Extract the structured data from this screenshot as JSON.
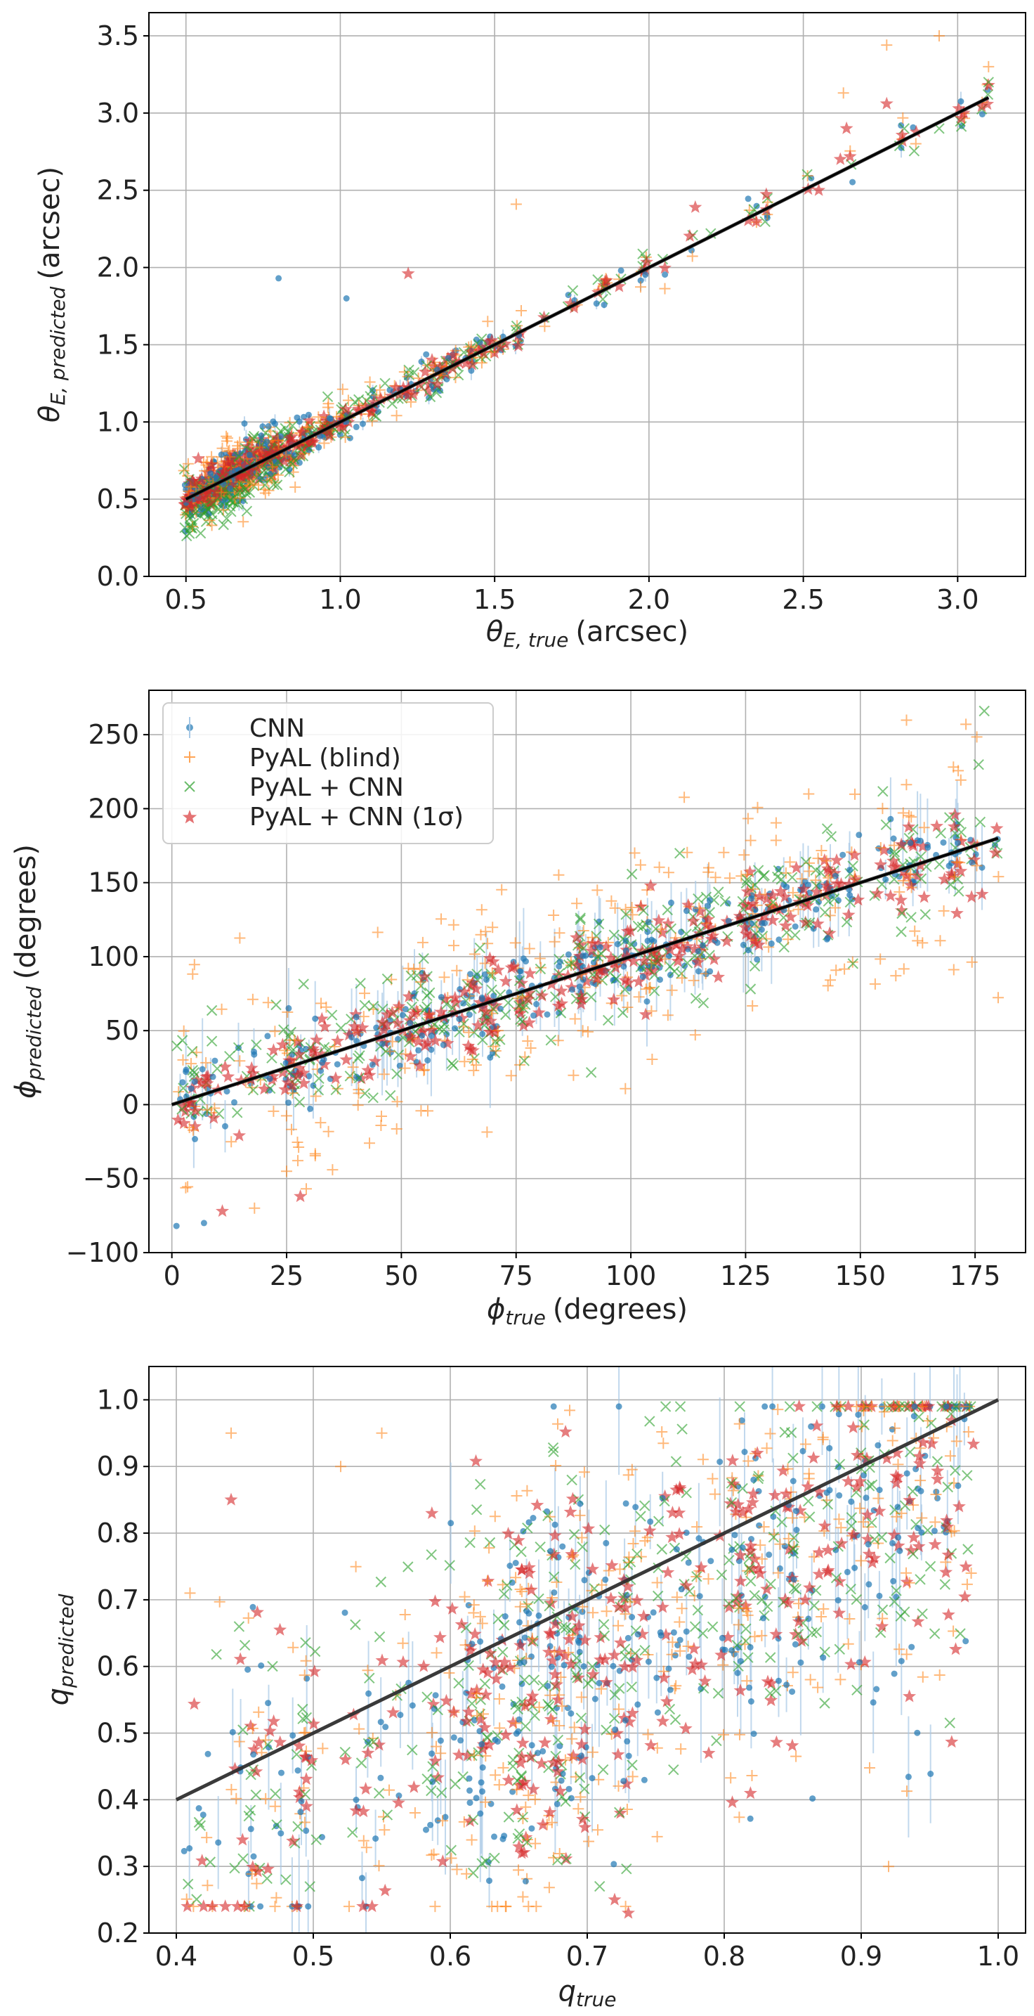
{
  "chart_data": [
    {
      "type": "scatter",
      "xlabel_symbol": "θ",
      "xlabel_sub": "E, true",
      "xlabel_unit": "(arcsec)",
      "ylabel_symbol": "θ",
      "ylabel_sub": "E, predicted",
      "ylabel_unit": "(arcsec)",
      "xlim": [
        0.38,
        3.22
      ],
      "ylim": [
        0.0,
        3.65
      ],
      "xticks": [
        "0.5",
        "1.0",
        "1.5",
        "2.0",
        "2.5",
        "3.0"
      ],
      "yticks": [
        "0.0",
        "0.5",
        "1.0",
        "1.5",
        "2.0",
        "2.5",
        "3.0",
        "3.5"
      ],
      "grid": true,
      "reference_line": {
        "x": [
          0.5,
          3.1
        ],
        "y": [
          0.5,
          3.1
        ]
      },
      "distribution": "points cluster tightly around y = x; largest scatter at small theta_E (0.5-0.8)",
      "outliers": [
        {
          "series": "CNN",
          "x": 0.8,
          "y": 1.93
        },
        {
          "series": "CNN",
          "x": 1.02,
          "y": 1.8
        },
        {
          "series": "PyAL (blind)",
          "x": 1.57,
          "y": 2.41
        },
        {
          "series": "PyAL (blind)",
          "x": 2.77,
          "y": 3.44
        },
        {
          "series": "PyAL (blind)",
          "x": 2.94,
          "y": 3.5
        },
        {
          "series": "PyAL (blind)",
          "x": 3.1,
          "y": 3.3
        },
        {
          "series": "PyAL (blind)",
          "x": 2.63,
          "y": 3.13
        },
        {
          "series": "PyAL + CNN (1σ)",
          "x": 1.22,
          "y": 1.96
        },
        {
          "series": "PyAL + CNN (1σ)",
          "x": 2.15,
          "y": 2.39
        },
        {
          "series": "PyAL + CNN (1σ)",
          "x": 2.55,
          "y": 2.5
        },
        {
          "series": "PyAL + CNN (1σ)",
          "x": 2.62,
          "y": 2.7
        },
        {
          "series": "PyAL + CNN (1σ)",
          "x": 2.64,
          "y": 2.9
        },
        {
          "series": "PyAL + CNN (1σ)",
          "x": 2.77,
          "y": 3.06
        },
        {
          "series": "PyAL + CNN (1σ)",
          "x": 3.02,
          "y": 3.0
        },
        {
          "series": "PyAL + CNN (1σ)",
          "x": 3.1,
          "y": 3.18
        },
        {
          "series": "PyAL + CNN",
          "x": 2.94,
          "y": 2.9
        },
        {
          "series": "PyAL + CNN",
          "x": 3.1,
          "y": 3.2
        },
        {
          "series": "PyAL + CNN",
          "x": 2.2,
          "y": 2.22
        }
      ]
    },
    {
      "type": "scatter",
      "xlabel_symbol": "ϕ",
      "xlabel_sub": "true",
      "xlabel_unit": "(degrees)",
      "ylabel_symbol": "ϕ",
      "ylabel_sub": "predicted",
      "ylabel_unit": "(degrees)",
      "xlim": [
        -5,
        186
      ],
      "ylim": [
        -100,
        280
      ],
      "xticks": [
        "0",
        "25",
        "50",
        "75",
        "100",
        "125",
        "150",
        "175"
      ],
      "yticks": [
        "−100",
        "−50",
        "0",
        "50",
        "100",
        "150",
        "200",
        "250"
      ],
      "grid": true,
      "legend_position": "top-left",
      "reference_line": {
        "x": [
          0,
          180
        ],
        "y": [
          0,
          180
        ]
      },
      "distribution": "dense band around y = x with wide scatter of PyAL (blind) points above and below; negative predictions near small phi_true",
      "outliers": [
        {
          "series": "PyAL + CNN",
          "x": 177,
          "y": 266
        },
        {
          "series": "PyAL (blind)",
          "x": 173,
          "y": 257
        },
        {
          "series": "PyAL (blind)",
          "x": 25,
          "y": -45
        },
        {
          "series": "PyAL (blind)",
          "x": 35,
          "y": -44
        },
        {
          "series": "PyAL (blind)",
          "x": 18,
          "y": -70
        },
        {
          "series": "CNN",
          "x": 1,
          "y": -82
        },
        {
          "series": "CNN",
          "x": 7,
          "y": -80
        },
        {
          "series": "PyAL + CNN (1σ)",
          "x": 11,
          "y": -72
        },
        {
          "series": "PyAL + CNN (1σ)",
          "x": 28,
          "y": -62
        }
      ]
    },
    {
      "type": "scatter",
      "xlabel_symbol": "q",
      "xlabel_sub": "true",
      "xlabel_unit": "",
      "ylabel_symbol": "q",
      "ylabel_sub": "predicted",
      "ylabel_unit": "",
      "xlim": [
        0.38,
        1.02
      ],
      "ylim": [
        0.2,
        1.05
      ],
      "xticks": [
        "0.4",
        "0.5",
        "0.6",
        "0.7",
        "0.8",
        "0.9",
        "1.0"
      ],
      "yticks": [
        "0.2",
        "0.3",
        "0.4",
        "0.5",
        "0.6",
        "0.7",
        "0.8",
        "0.9",
        "1.0"
      ],
      "grid": true,
      "reference_line": {
        "x": [
          0.4,
          1.0
        ],
        "y": [
          0.4,
          1.0
        ]
      },
      "distribution": "broad cloud; predictions biased low for q_true 0.6-0.8 with most points between 0.35 and 0.95",
      "outliers": [
        {
          "series": "PyAL (blind)",
          "x": 0.41,
          "y": 0.71
        },
        {
          "series": "PyAL (blind)",
          "x": 0.44,
          "y": 0.95
        },
        {
          "series": "PyAL + CNN (1σ)",
          "x": 0.44,
          "y": 0.85
        },
        {
          "series": "PyAL (blind)",
          "x": 0.52,
          "y": 0.9
        },
        {
          "series": "PyAL (blind)",
          "x": 0.55,
          "y": 0.95
        },
        {
          "series": "PyAL + CNN",
          "x": 0.48,
          "y": 0.28
        },
        {
          "series": "PyAL + CNN (1σ)",
          "x": 0.73,
          "y": 0.23
        },
        {
          "series": "PyAL + CNN (1σ)",
          "x": 0.72,
          "y": 0.25
        },
        {
          "series": "PyAL (blind)",
          "x": 0.92,
          "y": 0.3
        }
      ]
    }
  ],
  "series": [
    {
      "name": "CNN",
      "marker": "circle",
      "color": "#1f77b4"
    },
    {
      "name": "PyAL (blind)",
      "marker": "plus",
      "color": "#ff7f0e"
    },
    {
      "name": "PyAL + CNN",
      "marker": "x",
      "color": "#2ca02c"
    },
    {
      "name": "PyAL + CNN (1σ)",
      "marker": "star",
      "color": "#d62728"
    }
  ],
  "colors": {
    "grid": "#b0b0b0",
    "reference_line": "#2f2f2f",
    "errorbar": "#a6c8e6"
  }
}
